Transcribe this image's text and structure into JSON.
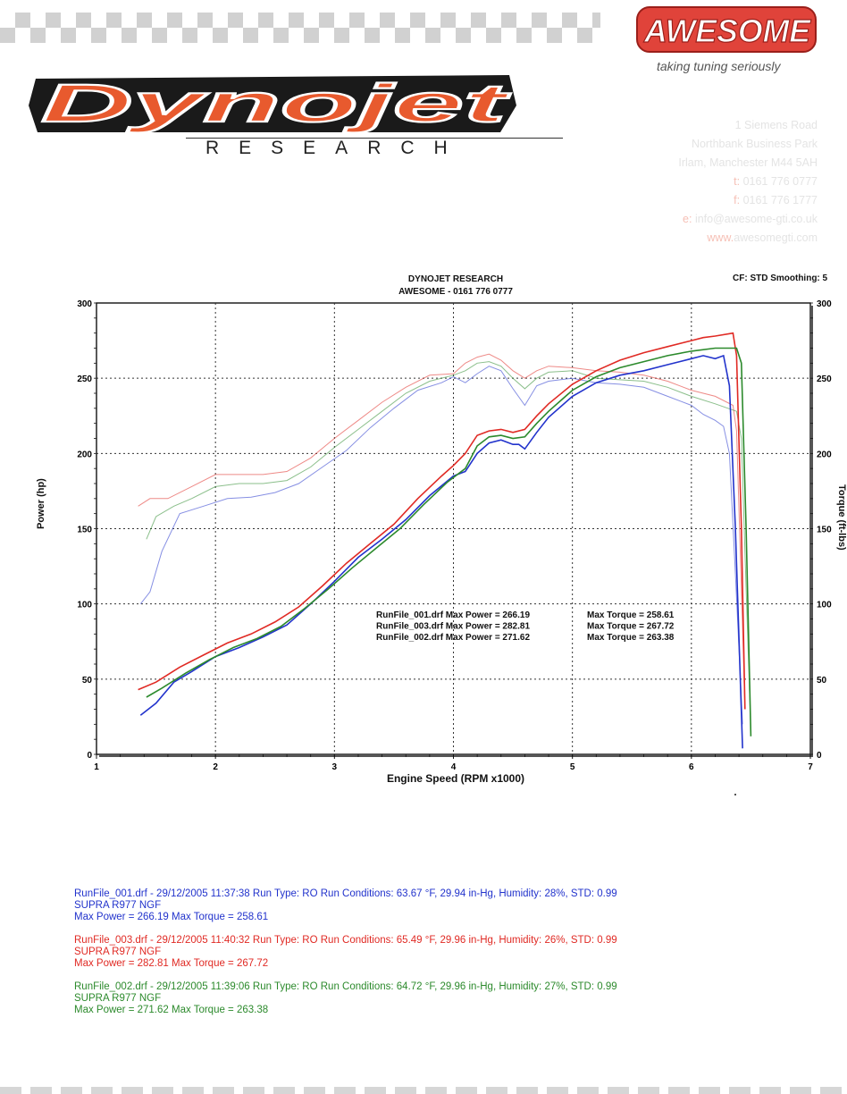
{
  "header": {
    "brand_logo": "AWESOME",
    "tagline": "taking tuning seriously",
    "dynojet_logo": "Dynojet",
    "research_word": "RESEARCH",
    "address": {
      "line1": "1 Siemens Road",
      "line2": "Northbank Business Park",
      "line3": "Irlam, Manchester M44 5AH",
      "phone_prefix": "t:",
      "phone": "0161 776 0777",
      "fax_prefix": "f:",
      "fax": "0161 776 1777",
      "email_prefix": "e:",
      "email": "info@awesome-gti.co.uk",
      "web_prefix": "www.",
      "web": "awesomegti.com"
    },
    "colors": {
      "awesome_red": "#e0433a",
      "dynojet_orange": "#e85a2e"
    }
  },
  "chart_data": {
    "type": "line",
    "title_line1": "DYNOJET RESEARCH",
    "title_line2": "AWESOME - 0161 776 0777",
    "settings": "CF: STD  Smoothing: 5",
    "xlabel": "Engine Speed (RPM x1000)",
    "ylabel_left": "Power (hp)",
    "ylabel_right": "Torque (ft-lbs)",
    "xlim": [
      1,
      7
    ],
    "ylim": [
      0,
      300
    ],
    "x_ticks": [
      "1",
      "2",
      "3",
      "4",
      "5",
      "6",
      "7"
    ],
    "y_ticks": [
      "0",
      "50",
      "100",
      "150",
      "200",
      "250",
      "300"
    ],
    "grid": true,
    "summary": [
      {
        "file": "RunFile_001.drf",
        "power_text": "Max Power = 266.19",
        "torque_text": "Max Torque = 258.61"
      },
      {
        "file": "RunFile_003.drf",
        "power_text": "Max Power = 282.81",
        "torque_text": "Max Torque = 267.72"
      },
      {
        "file": "RunFile_002.drf",
        "power_text": "Max Power = 271.62",
        "torque_text": "Max Torque = 263.38"
      }
    ],
    "series": [
      {
        "name": "RunFile_001.drf",
        "color": "#2233cc",
        "power": [
          [
            1.37,
            26
          ],
          [
            1.5,
            34
          ],
          [
            1.65,
            48
          ],
          [
            1.8,
            55
          ],
          [
            2.0,
            65
          ],
          [
            2.2,
            71
          ],
          [
            2.4,
            78
          ],
          [
            2.6,
            86
          ],
          [
            2.8,
            100
          ],
          [
            3.0,
            115
          ],
          [
            3.2,
            131
          ],
          [
            3.4,
            143
          ],
          [
            3.6,
            156
          ],
          [
            3.8,
            172
          ],
          [
            4.0,
            185
          ],
          [
            4.1,
            188
          ],
          [
            4.2,
            200
          ],
          [
            4.3,
            207
          ],
          [
            4.4,
            209
          ],
          [
            4.5,
            206
          ],
          [
            4.55,
            206
          ],
          [
            4.6,
            203
          ],
          [
            4.7,
            214
          ],
          [
            4.8,
            224
          ],
          [
            5.0,
            238
          ],
          [
            5.2,
            247
          ],
          [
            5.4,
            252
          ],
          [
            5.6,
            255
          ],
          [
            5.8,
            259
          ],
          [
            6.0,
            263
          ],
          [
            6.1,
            265
          ],
          [
            6.2,
            263
          ],
          [
            6.27,
            265
          ],
          [
            6.32,
            245
          ],
          [
            6.37,
            150
          ],
          [
            6.43,
            4
          ]
        ],
        "torque": [
          [
            1.37,
            100
          ],
          [
            1.45,
            108
          ],
          [
            1.55,
            135
          ],
          [
            1.7,
            160
          ],
          [
            1.9,
            165
          ],
          [
            2.1,
            170
          ],
          [
            2.3,
            171
          ],
          [
            2.5,
            174
          ],
          [
            2.7,
            180
          ],
          [
            2.9,
            191
          ],
          [
            3.1,
            202
          ],
          [
            3.3,
            217
          ],
          [
            3.5,
            230
          ],
          [
            3.7,
            242
          ],
          [
            3.9,
            247
          ],
          [
            4.0,
            251
          ],
          [
            4.1,
            247
          ],
          [
            4.2,
            253
          ],
          [
            4.3,
            258
          ],
          [
            4.4,
            255
          ],
          [
            4.5,
            243
          ],
          [
            4.6,
            232
          ],
          [
            4.7,
            245
          ],
          [
            4.8,
            248
          ],
          [
            5.0,
            250
          ],
          [
            5.2,
            247
          ],
          [
            5.4,
            246
          ],
          [
            5.6,
            244
          ],
          [
            5.8,
            238
          ],
          [
            6.0,
            232
          ],
          [
            6.1,
            226
          ],
          [
            6.2,
            222
          ],
          [
            6.27,
            218
          ],
          [
            6.32,
            200
          ],
          [
            6.37,
            120
          ],
          [
            6.43,
            20
          ]
        ]
      },
      {
        "name": "RunFile_003.drf",
        "color": "#e02a24",
        "power": [
          [
            1.35,
            43
          ],
          [
            1.5,
            48
          ],
          [
            1.7,
            58
          ],
          [
            1.9,
            66
          ],
          [
            2.1,
            74
          ],
          [
            2.3,
            80
          ],
          [
            2.5,
            88
          ],
          [
            2.7,
            98
          ],
          [
            2.9,
            112
          ],
          [
            3.1,
            127
          ],
          [
            3.3,
            140
          ],
          [
            3.5,
            153
          ],
          [
            3.7,
            170
          ],
          [
            3.9,
            185
          ],
          [
            4.0,
            192
          ],
          [
            4.1,
            200
          ],
          [
            4.2,
            212
          ],
          [
            4.3,
            215
          ],
          [
            4.4,
            216
          ],
          [
            4.5,
            214
          ],
          [
            4.6,
            216
          ],
          [
            4.7,
            225
          ],
          [
            4.8,
            233
          ],
          [
            5.0,
            246
          ],
          [
            5.2,
            255
          ],
          [
            5.4,
            262
          ],
          [
            5.6,
            267
          ],
          [
            5.8,
            271
          ],
          [
            6.0,
            275
          ],
          [
            6.1,
            277
          ],
          [
            6.2,
            278
          ],
          [
            6.35,
            280
          ],
          [
            6.38,
            265
          ],
          [
            6.42,
            150
          ],
          [
            6.45,
            30
          ]
        ],
        "torque": [
          [
            1.35,
            165
          ],
          [
            1.45,
            170
          ],
          [
            1.6,
            170
          ],
          [
            1.8,
            178
          ],
          [
            2.0,
            186
          ],
          [
            2.2,
            186
          ],
          [
            2.4,
            186
          ],
          [
            2.6,
            188
          ],
          [
            2.8,
            197
          ],
          [
            3.0,
            210
          ],
          [
            3.2,
            222
          ],
          [
            3.4,
            234
          ],
          [
            3.6,
            244
          ],
          [
            3.8,
            252
          ],
          [
            4.0,
            253
          ],
          [
            4.1,
            260
          ],
          [
            4.2,
            264
          ],
          [
            4.3,
            266
          ],
          [
            4.4,
            262
          ],
          [
            4.5,
            255
          ],
          [
            4.6,
            250
          ],
          [
            4.7,
            255
          ],
          [
            4.8,
            258
          ],
          [
            5.0,
            257
          ],
          [
            5.2,
            255
          ],
          [
            5.4,
            254
          ],
          [
            5.6,
            252
          ],
          [
            5.8,
            248
          ],
          [
            6.0,
            242
          ],
          [
            6.2,
            238
          ],
          [
            6.35,
            232
          ],
          [
            6.38,
            215
          ],
          [
            6.42,
            110
          ],
          [
            6.45,
            30
          ]
        ]
      },
      {
        "name": "RunFile_002.drf",
        "color": "#2c8a2c",
        "power": [
          [
            1.42,
            38
          ],
          [
            1.55,
            44
          ],
          [
            1.75,
            54
          ],
          [
            1.95,
            63
          ],
          [
            2.15,
            71
          ],
          [
            2.35,
            77
          ],
          [
            2.55,
            85
          ],
          [
            2.75,
            97
          ],
          [
            2.95,
            110
          ],
          [
            3.15,
            124
          ],
          [
            3.35,
            137
          ],
          [
            3.55,
            150
          ],
          [
            3.75,
            166
          ],
          [
            3.95,
            181
          ],
          [
            4.1,
            190
          ],
          [
            4.2,
            205
          ],
          [
            4.3,
            211
          ],
          [
            4.4,
            212
          ],
          [
            4.5,
            210
          ],
          [
            4.6,
            211
          ],
          [
            4.7,
            220
          ],
          [
            4.8,
            228
          ],
          [
            5.0,
            242
          ],
          [
            5.2,
            251
          ],
          [
            5.4,
            257
          ],
          [
            5.6,
            261
          ],
          [
            5.8,
            265
          ],
          [
            6.0,
            268
          ],
          [
            6.2,
            270
          ],
          [
            6.38,
            270
          ],
          [
            6.42,
            260
          ],
          [
            6.46,
            150
          ],
          [
            6.5,
            12
          ]
        ],
        "torque": [
          [
            1.42,
            143
          ],
          [
            1.5,
            158
          ],
          [
            1.65,
            165
          ],
          [
            1.8,
            170
          ],
          [
            2.0,
            178
          ],
          [
            2.2,
            180
          ],
          [
            2.4,
            180
          ],
          [
            2.6,
            182
          ],
          [
            2.8,
            191
          ],
          [
            3.0,
            204
          ],
          [
            3.2,
            216
          ],
          [
            3.4,
            228
          ],
          [
            3.6,
            240
          ],
          [
            3.8,
            248
          ],
          [
            4.0,
            252
          ],
          [
            4.1,
            255
          ],
          [
            4.2,
            260
          ],
          [
            4.3,
            261
          ],
          [
            4.4,
            258
          ],
          [
            4.5,
            250
          ],
          [
            4.6,
            243
          ],
          [
            4.7,
            250
          ],
          [
            4.8,
            254
          ],
          [
            5.0,
            255
          ],
          [
            5.2,
            250
          ],
          [
            5.4,
            249
          ],
          [
            5.6,
            248
          ],
          [
            5.8,
            244
          ],
          [
            6.0,
            238
          ],
          [
            6.2,
            233
          ],
          [
            6.38,
            228
          ],
          [
            6.42,
            210
          ],
          [
            6.46,
            110
          ],
          [
            6.5,
            15
          ]
        ]
      }
    ]
  },
  "footer": {
    "runs": [
      {
        "color": "#2233cc",
        "line1": "RunFile_001.drf - 29/12/2005 11:37:38  Run Type: RO  Run Conditions: 63.67 °F, 29.94 in-Hg,  Humidity:  28%, STD: 0.99",
        "line2": "SUPRA R977 NGF",
        "line3": "Max Power = 266.19  Max Torque = 258.61"
      },
      {
        "color": "#e02a24",
        "line1": "RunFile_003.drf - 29/12/2005 11:40:32  Run Type: RO  Run Conditions: 65.49 °F, 29.96 in-Hg,  Humidity:  26%, STD: 0.99",
        "line2": "SUPRA R977 NGF",
        "line3": "Max Power = 282.81  Max Torque = 267.72"
      },
      {
        "color": "#2c8a2c",
        "line1": "RunFile_002.drf - 29/12/2005 11:39:06  Run Type: RO  Run Conditions: 64.72 °F, 29.96 in-Hg,  Humidity:  27%, STD: 0.99",
        "line2": "SUPRA R977 NGF",
        "line3": "Max Power = 271.62  Max Torque = 263.38"
      }
    ]
  }
}
